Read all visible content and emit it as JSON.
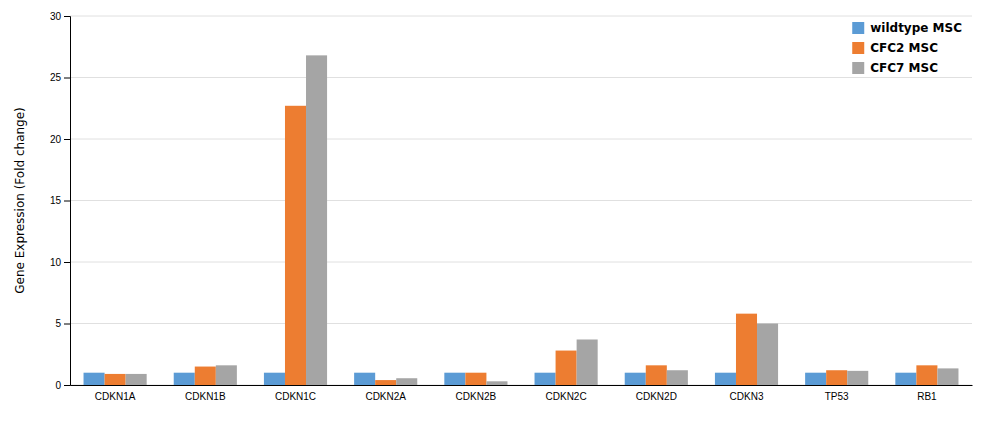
{
  "chart_data": {
    "type": "bar",
    "categories": [
      "CDKN1A",
      "CDKN1B",
      "CDKN1C",
      "CDKN2A",
      "CDKN2B",
      "CDKN2C",
      "CDKN2D",
      "CDKN3",
      "TP53",
      "RB1"
    ],
    "series": [
      {
        "name": "wildtype MSC",
        "color": "#5B9BD5",
        "values": [
          1.0,
          1.0,
          1.0,
          1.0,
          1.0,
          1.0,
          1.0,
          1.0,
          1.0,
          1.0
        ]
      },
      {
        "name": "CFC2 MSC",
        "color": "#ED7D31",
        "values": [
          0.9,
          1.5,
          22.7,
          0.4,
          1.0,
          2.8,
          1.6,
          5.8,
          1.2,
          1.6
        ]
      },
      {
        "name": "CFC7 MSC",
        "color": "#A5A5A5",
        "values": [
          0.9,
          1.6,
          26.8,
          0.55,
          0.3,
          3.7,
          1.2,
          5.0,
          1.15,
          1.35
        ]
      }
    ],
    "ylabel": "Gene Expression (Fold change)",
    "ylim": [
      0,
      30
    ],
    "yticks": [
      0,
      5,
      10,
      15,
      20,
      25,
      30
    ],
    "grid": true,
    "legend": "upper-right"
  }
}
